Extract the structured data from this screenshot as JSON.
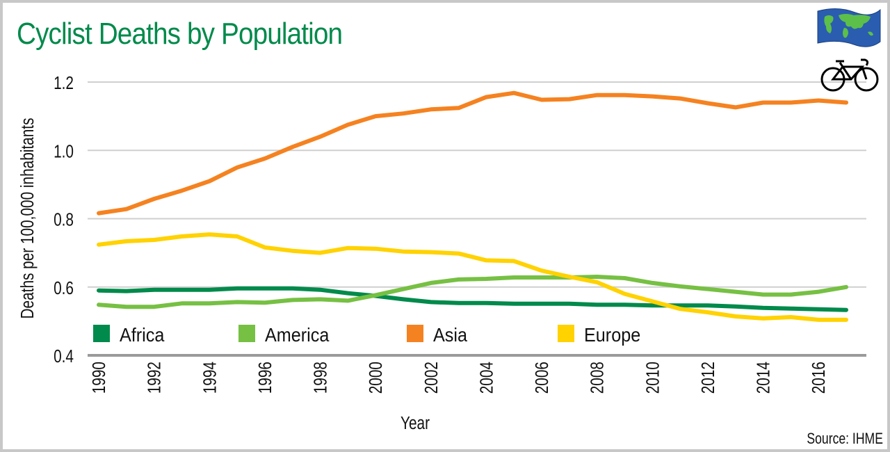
{
  "title": "Cyclist Deaths by Population",
  "source": "Source: IHME",
  "icons": [
    "world-flag-icon",
    "bicycle-icon"
  ],
  "chart_data": {
    "type": "line",
    "title": "Cyclist Deaths by Population",
    "xlabel": "Year",
    "ylabel": "Deaths per 100,000 inhabitants",
    "ylim": [
      0.4,
      1.2
    ],
    "yticks": [
      "0.4",
      "0.6",
      "0.8",
      "1.0",
      "1.2"
    ],
    "ytick_values": [
      0.4,
      0.6,
      0.8,
      1.0,
      1.2
    ],
    "xticks": [
      "1990",
      "1992",
      "1994",
      "1996",
      "1998",
      "2000",
      "2002",
      "2004",
      "2006",
      "2008",
      "2010",
      "2012",
      "2014",
      "2016"
    ],
    "grid": true,
    "legend_position": "bottom-inside",
    "x": [
      1990,
      1991,
      1992,
      1993,
      1994,
      1995,
      1996,
      1997,
      1998,
      1999,
      2000,
      2001,
      2002,
      2003,
      2004,
      2005,
      2006,
      2007,
      2008,
      2009,
      2010,
      2011,
      2012,
      2013,
      2014,
      2015,
      2016,
      2017
    ],
    "series": [
      {
        "name": "Africa",
        "color": "#008a4b",
        "values": [
          0.59,
          0.588,
          0.592,
          0.592,
          0.592,
          0.596,
          0.596,
          0.596,
          0.592,
          0.582,
          0.574,
          0.564,
          0.556,
          0.553,
          0.553,
          0.551,
          0.551,
          0.551,
          0.548,
          0.548,
          0.546,
          0.546,
          0.546,
          0.543,
          0.539,
          0.537,
          0.535,
          0.533
        ]
      },
      {
        "name": "America",
        "color": "#76c043",
        "values": [
          0.548,
          0.542,
          0.542,
          0.552,
          0.552,
          0.556,
          0.554,
          0.562,
          0.564,
          0.56,
          0.576,
          0.594,
          0.612,
          0.622,
          0.624,
          0.628,
          0.628,
          0.628,
          0.63,
          0.626,
          0.612,
          0.602,
          0.594,
          0.586,
          0.578,
          0.578,
          0.586,
          0.6
        ]
      },
      {
        "name": "Asia",
        "color": "#f58220",
        "values": [
          0.816,
          0.828,
          0.858,
          0.882,
          0.91,
          0.95,
          0.976,
          1.01,
          1.04,
          1.075,
          1.1,
          1.108,
          1.12,
          1.124,
          1.156,
          1.168,
          1.148,
          1.15,
          1.162,
          1.162,
          1.158,
          1.152,
          1.138,
          1.126,
          1.14,
          1.14,
          1.146,
          1.14
        ]
      },
      {
        "name": "Europe",
        "color": "#ffd200",
        "values": [
          0.724,
          0.734,
          0.738,
          0.748,
          0.754,
          0.748,
          0.716,
          0.706,
          0.7,
          0.714,
          0.712,
          0.704,
          0.702,
          0.698,
          0.678,
          0.676,
          0.648,
          0.63,
          0.614,
          0.58,
          0.558,
          0.536,
          0.526,
          0.514,
          0.508,
          0.512,
          0.504,
          0.504
        ]
      }
    ]
  }
}
